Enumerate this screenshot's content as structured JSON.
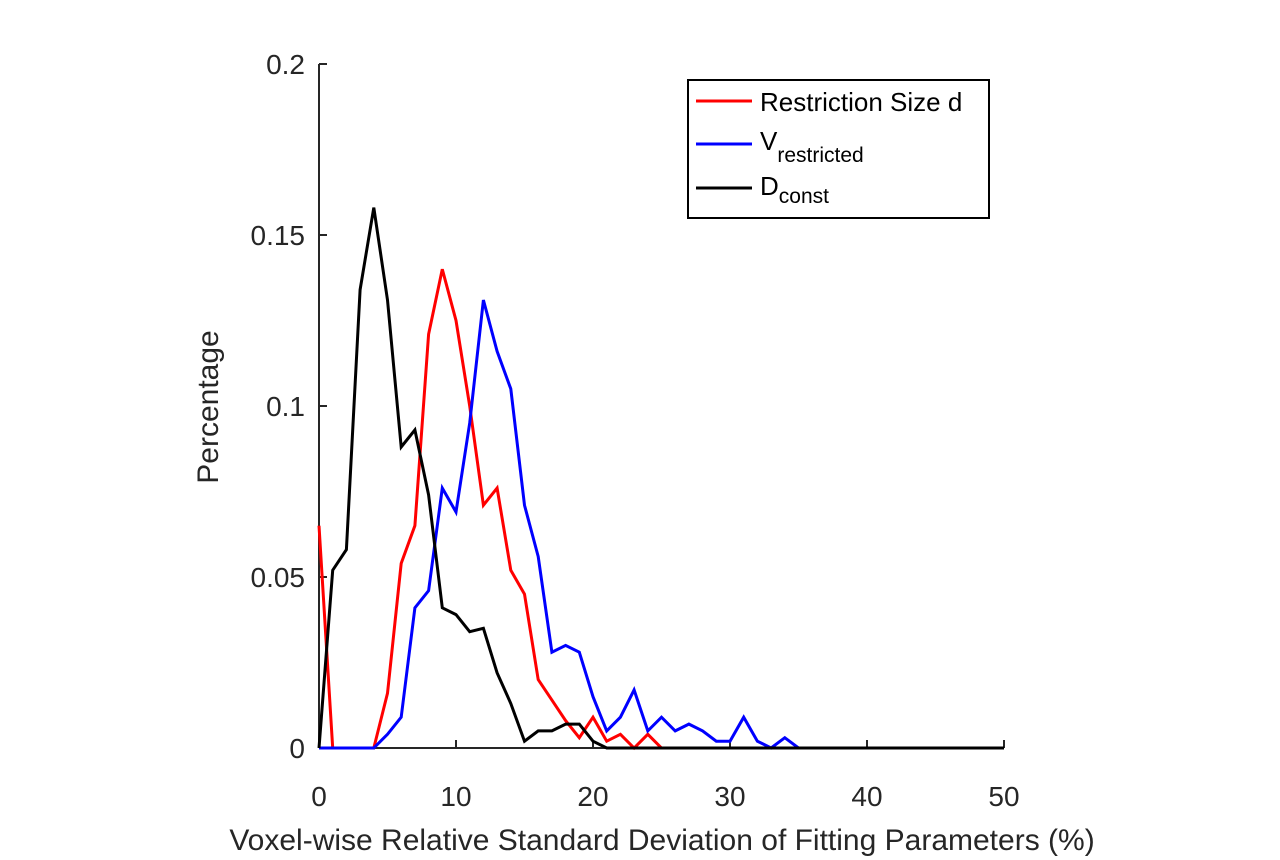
{
  "chart_data": {
    "type": "line",
    "title": "",
    "xlabel": "Voxel-wise Relative Standard Deviation of Fitting Parameters (%)",
    "ylabel": "Percentage",
    "xlim": [
      0,
      50
    ],
    "ylim": [
      0,
      0.2
    ],
    "xticks": [
      0,
      10,
      20,
      30,
      40,
      50
    ],
    "xtick_labels": [
      "0",
      "10",
      "20",
      "30",
      "40",
      "50"
    ],
    "yticks": [
      0,
      0.05,
      0.1,
      0.15,
      0.2
    ],
    "ytick_labels": [
      "0",
      "0.05",
      "0.1",
      "0.15",
      "0.2"
    ],
    "grid": false,
    "legend_position": "top-right",
    "x": [
      0,
      1,
      2,
      3,
      4,
      5,
      6,
      7,
      8,
      9,
      10,
      11,
      12,
      13,
      14,
      15,
      16,
      17,
      18,
      19,
      20,
      21,
      22,
      23,
      24,
      25,
      26,
      27,
      28,
      29,
      30,
      31,
      32,
      33,
      34,
      35,
      36,
      37,
      38,
      39,
      40,
      41,
      42,
      43,
      44,
      45,
      46,
      47,
      48,
      49,
      50
    ],
    "series": [
      {
        "name": "Restriction Size d",
        "legend_main": "Restriction Size d",
        "legend_sub": "",
        "color": "#ff0000",
        "values": [
          0.065,
          0,
          0,
          0,
          0,
          0.016,
          0.054,
          0.065,
          0.121,
          0.14,
          0.125,
          0.1,
          0.071,
          0.076,
          0.052,
          0.045,
          0.02,
          0.014,
          0.008,
          0.003,
          0.009,
          0.002,
          0.004,
          0,
          0.004,
          0,
          0,
          0,
          0,
          0,
          0,
          0,
          0,
          0,
          0,
          0,
          0,
          0,
          0,
          0,
          0,
          0,
          0,
          0,
          0,
          0,
          0,
          0,
          0,
          0,
          0
        ]
      },
      {
        "name": "V_restricted",
        "legend_main": "V",
        "legend_sub": "restricted",
        "color": "#0000ff",
        "values": [
          0,
          0,
          0,
          0,
          0,
          0.004,
          0.009,
          0.041,
          0.046,
          0.076,
          0.069,
          0.095,
          0.131,
          0.116,
          0.105,
          0.071,
          0.056,
          0.028,
          0.03,
          0.028,
          0.015,
          0.005,
          0.009,
          0.017,
          0.005,
          0.009,
          0.005,
          0.007,
          0.005,
          0.002,
          0.002,
          0.009,
          0.002,
          0,
          0.003,
          0,
          0,
          0,
          0,
          0,
          0,
          0,
          0,
          0,
          0,
          0,
          0,
          0,
          0,
          0,
          0
        ]
      },
      {
        "name": "D_const",
        "legend_main": "D",
        "legend_sub": "const",
        "color": "#000000",
        "values": [
          0,
          0.052,
          0.058,
          0.134,
          0.158,
          0.131,
          0.088,
          0.093,
          0.074,
          0.041,
          0.039,
          0.034,
          0.035,
          0.022,
          0.013,
          0.002,
          0.005,
          0.005,
          0.007,
          0.007,
          0.002,
          0,
          0,
          0,
          0,
          0,
          0,
          0,
          0,
          0,
          0,
          0,
          0,
          0,
          0,
          0,
          0,
          0,
          0,
          0,
          0,
          0,
          0,
          0,
          0,
          0,
          0,
          0,
          0,
          0,
          0
        ]
      }
    ]
  }
}
